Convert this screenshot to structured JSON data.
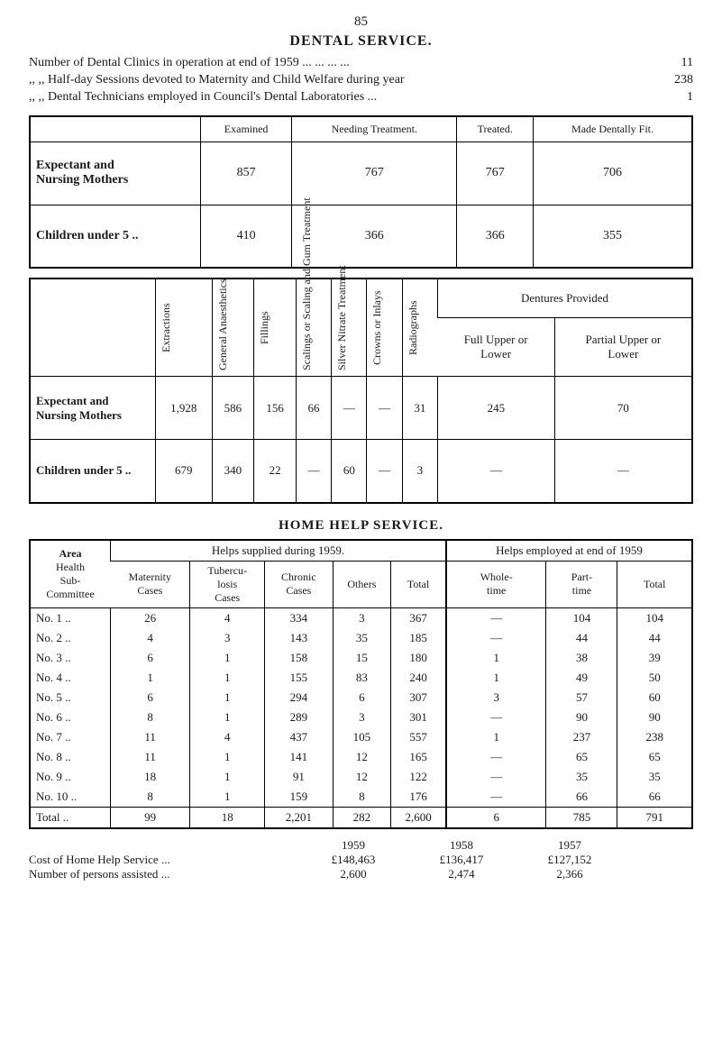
{
  "page_number": "85",
  "section_title": "DENTAL SERVICE.",
  "intro": [
    {
      "label": "Number of Dental Clinics in operation at end of 1959",
      "dots": "...    ...    ...    ...",
      "value": "11"
    },
    {
      "label": ",,      ,,  Half-day Sessions devoted to Maternity and Child Welfare during year",
      "dots": "",
      "value": "238"
    },
    {
      "label": ",,      ,,  Dental Technicians employed in Council's Dental Laboratories",
      "dots": "...",
      "value": "1"
    }
  ],
  "table1": {
    "headers": [
      "",
      "Examined",
      "Needing Treatment.",
      "Treated.",
      "Made Dentally Fit."
    ],
    "rows": [
      {
        "label": "Expectant and Nursing Mothers",
        "cells": [
          "857",
          "767",
          "767",
          "706"
        ]
      },
      {
        "label": "Children under 5 ..",
        "cells": [
          "410",
          "366",
          "366",
          "355"
        ]
      }
    ]
  },
  "table2": {
    "rot_headers": [
      "Extractions",
      "General Anaesthetics",
      "Fillings",
      "Scalings or Scaling and Gum Treatment",
      "Silver Nitrate Treatment",
      "Crowns or Inlays",
      "Radiographs"
    ],
    "dentures_group": "Dentures Provided",
    "dentures_sub": [
      "Full Upper or Lower",
      "Partial Upper or Lower"
    ],
    "rows": [
      {
        "label": "Expectant and Nursing Mothers",
        "cells": [
          "1,928",
          "586",
          "156",
          "66",
          "—",
          "—",
          "31",
          "245",
          "70"
        ]
      },
      {
        "label": "Children under 5 ..",
        "cells": [
          "679",
          "340",
          "22",
          "—",
          "60",
          "—",
          "3",
          "—",
          "—"
        ]
      }
    ]
  },
  "home_help_title": "HOME HELP SERVICE.",
  "table3": {
    "corner": "Area Health Sub-Committee",
    "group_headers": [
      "Helps supplied during 1959.",
      "Helps employed at end of 1959"
    ],
    "col_headers": [
      "Maternity Cases",
      "Tubercu-losis Cases",
      "Chronic Cases",
      "Others",
      "Total",
      "Whole-time",
      "Part-time",
      "Total"
    ],
    "rows": [
      {
        "label": "No.  1 ..",
        "cells": [
          "26",
          "4",
          "334",
          "3",
          "367",
          "—",
          "104",
          "104"
        ]
      },
      {
        "label": "No.  2 ..",
        "cells": [
          "4",
          "3",
          "143",
          "35",
          "185",
          "—",
          "44",
          "44"
        ]
      },
      {
        "label": "No.  3 ..",
        "cells": [
          "6",
          "1",
          "158",
          "15",
          "180",
          "1",
          "38",
          "39"
        ]
      },
      {
        "label": "No.  4 ..",
        "cells": [
          "1",
          "1",
          "155",
          "83",
          "240",
          "1",
          "49",
          "50"
        ]
      },
      {
        "label": "No.  5 ..",
        "cells": [
          "6",
          "1",
          "294",
          "6",
          "307",
          "3",
          "57",
          "60"
        ]
      },
      {
        "label": "No.  6 ..",
        "cells": [
          "8",
          "1",
          "289",
          "3",
          "301",
          "—",
          "90",
          "90"
        ]
      },
      {
        "label": "No.  7 ..",
        "cells": [
          "11",
          "4",
          "437",
          "105",
          "557",
          "1",
          "237",
          "238"
        ]
      },
      {
        "label": "No.  8 ..",
        "cells": [
          "11",
          "1",
          "141",
          "12",
          "165",
          "—",
          "65",
          "65"
        ]
      },
      {
        "label": "No.  9 ..",
        "cells": [
          "18",
          "1",
          "91",
          "12",
          "122",
          "—",
          "35",
          "35"
        ]
      },
      {
        "label": "No. 10 ..",
        "cells": [
          "8",
          "1",
          "159",
          "8",
          "176",
          "—",
          "66",
          "66"
        ]
      }
    ],
    "total": {
      "label": "Total ..",
      "cells": [
        "99",
        "18",
        "2,201",
        "282",
        "2,600",
        "6",
        "785",
        "791"
      ]
    }
  },
  "footer": {
    "year_headers": [
      "1959",
      "1958",
      "1957"
    ],
    "rows": [
      {
        "label": "Cost of Home Help Service",
        "dots": "...",
        "cells": [
          "£148,463",
          "£136,417",
          "£127,152"
        ]
      },
      {
        "label": "Number of persons assisted",
        "dots": "...",
        "cells": [
          "2,600",
          "2,474",
          "2,366"
        ]
      }
    ]
  }
}
